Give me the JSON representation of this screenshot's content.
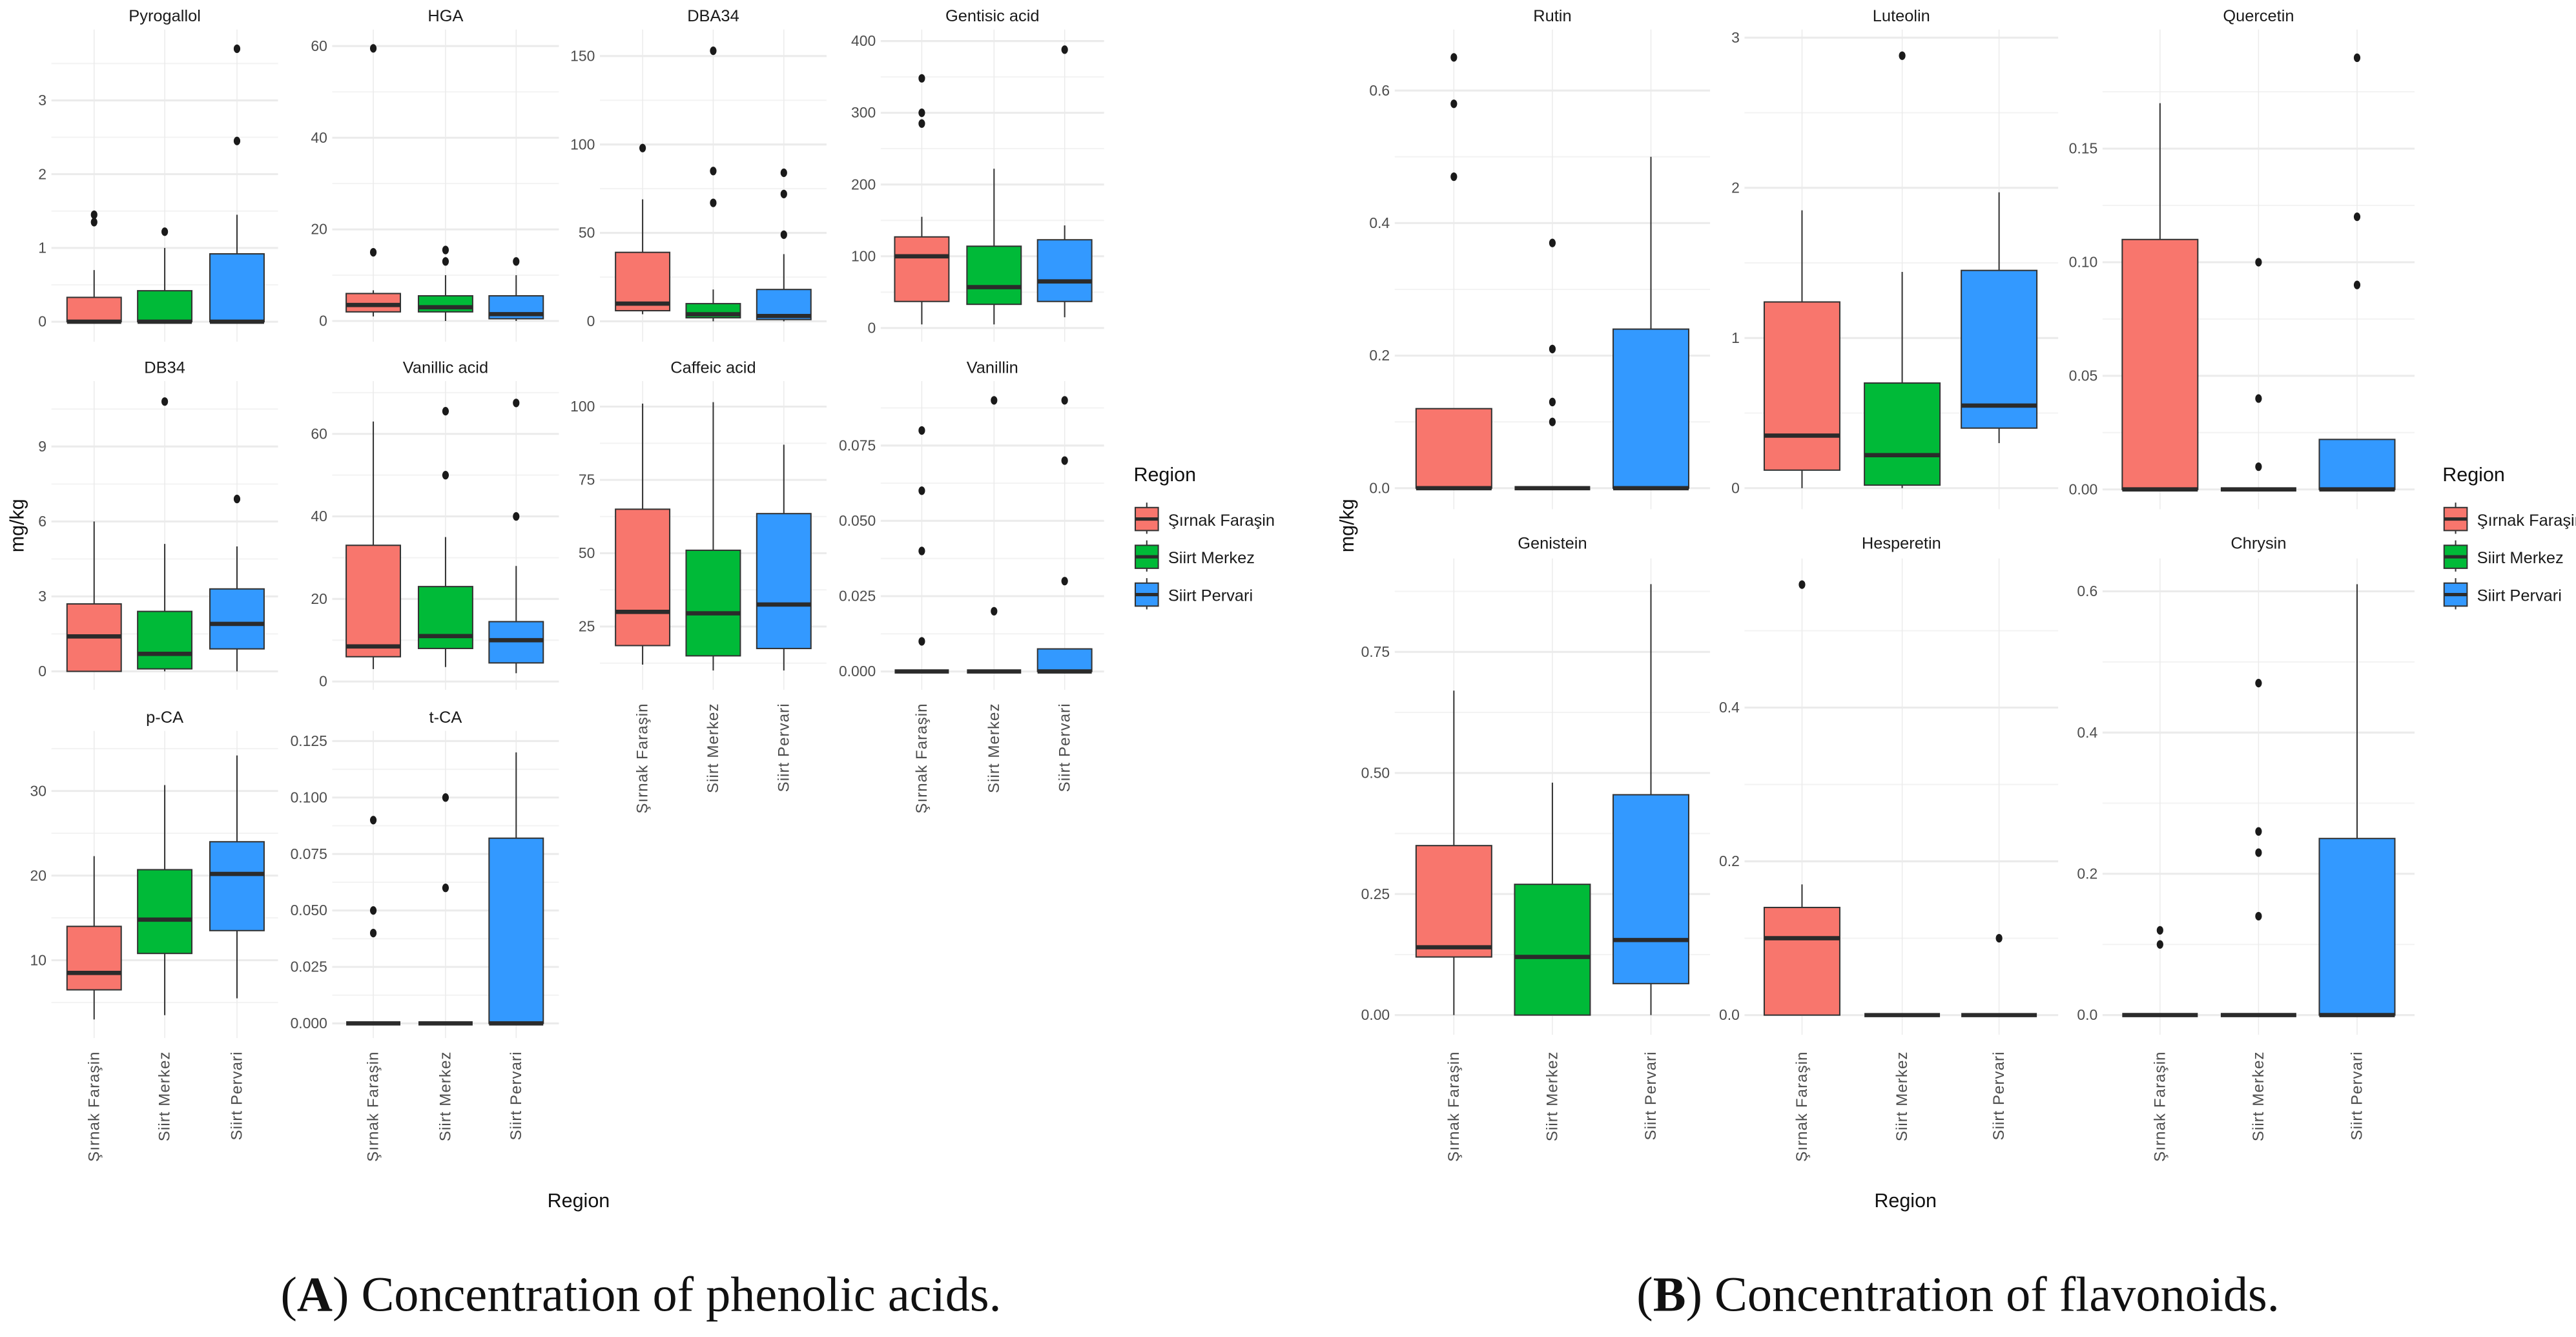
{
  "figure": {
    "caption_a": {
      "open": "(",
      "label": "A",
      "text": ") Concentration of phenolic acids."
    },
    "caption_b": {
      "open": "(",
      "label": "B",
      "text": ") Concentration of flavonoids."
    },
    "ylabel": "mg/kg",
    "xlabel": "Region",
    "legend_title": "Region"
  },
  "regions": [
    "Şırnak Faraşin",
    "Siirt Merkez",
    "Siirt Pervari"
  ],
  "colors": {
    "Şırnak Faraşin": "#F8766D",
    "Siirt Merkez": "#00BA38",
    "Siirt Pervari": "#3399FF",
    "outline": "#333333",
    "grid": "#ebebeb"
  },
  "chart_data": [
    {
      "type": "box",
      "group": "A",
      "title": "Pyrogallol",
      "ylim": [
        -0.27,
        3.96
      ],
      "yticks": [
        0,
        1,
        2,
        3
      ],
      "ytick_labels": [
        "0",
        "1",
        "2",
        "3"
      ],
      "boxes": [
        {
          "low": 0,
          "q1": 0,
          "median": 0,
          "q3": 0.33,
          "high": 0.7,
          "outliers": [
            1.35,
            1.45
          ]
        },
        {
          "low": 0,
          "q1": 0,
          "median": 0,
          "q3": 0.42,
          "high": 1.0,
          "outliers": [
            1.22
          ]
        },
        {
          "low": 0,
          "q1": 0,
          "median": 0,
          "q3": 0.92,
          "high": 1.45,
          "outliers": [
            2.45,
            3.7
          ]
        }
      ]
    },
    {
      "type": "box",
      "group": "A",
      "title": "HGA",
      "ylim": [
        -4.5,
        63.6
      ],
      "yticks": [
        0,
        20,
        40,
        60
      ],
      "ytick_labels": [
        "0",
        "20",
        "40",
        "60"
      ],
      "boxes": [
        {
          "low": 1,
          "q1": 2,
          "median": 3.5,
          "q3": 6,
          "high": 6.7,
          "outliers": [
            15,
            59.5
          ]
        },
        {
          "low": 0,
          "q1": 2,
          "median": 3,
          "q3": 5.5,
          "high": 10,
          "outliers": [
            13,
            15.5
          ]
        },
        {
          "low": 0,
          "q1": 0.5,
          "median": 1.5,
          "q3": 5.5,
          "high": 10,
          "outliers": [
            13
          ]
        }
      ]
    },
    {
      "type": "box",
      "group": "A",
      "title": "DBA34",
      "ylim": [
        -11.5,
        165
      ],
      "yticks": [
        0,
        50,
        100,
        150
      ],
      "ytick_labels": [
        "0",
        "50",
        "100",
        "150"
      ],
      "boxes": [
        {
          "low": 4,
          "q1": 6,
          "median": 10,
          "q3": 39,
          "high": 69,
          "outliers": [
            98
          ]
        },
        {
          "low": 0,
          "q1": 2,
          "median": 4,
          "q3": 10,
          "high": 18,
          "outliers": [
            67,
            85,
            153
          ]
        },
        {
          "low": 0,
          "q1": 1,
          "median": 3,
          "q3": 18,
          "high": 38,
          "outliers": [
            49,
            72,
            84
          ]
        }
      ]
    },
    {
      "type": "box",
      "group": "A",
      "title": "Gentisic acid",
      "ylim": [
        -19,
        416
      ],
      "yticks": [
        0,
        100,
        200,
        300,
        400
      ],
      "ytick_labels": [
        "0",
        "100",
        "200",
        "300",
        "400"
      ],
      "boxes": [
        {
          "low": 5,
          "q1": 37,
          "median": 100,
          "q3": 127,
          "high": 155,
          "outliers": [
            285,
            300,
            348
          ]
        },
        {
          "low": 5,
          "q1": 33,
          "median": 57,
          "q3": 114,
          "high": 222,
          "outliers": []
        },
        {
          "low": 15,
          "q1": 37,
          "median": 65,
          "q3": 123,
          "high": 143,
          "outliers": [
            388
          ]
        }
      ]
    },
    {
      "type": "box",
      "group": "A",
      "title": "DB34",
      "ylim": [
        -0.74,
        11.62
      ],
      "yticks": [
        0,
        3,
        6,
        9
      ],
      "ytick_labels": [
        "0",
        "3",
        "6",
        "9"
      ],
      "boxes": [
        {
          "low": 0,
          "q1": 0,
          "median": 1.4,
          "q3": 2.7,
          "high": 6,
          "outliers": []
        },
        {
          "low": 0,
          "q1": 0.1,
          "median": 0.7,
          "q3": 2.4,
          "high": 5.1,
          "outliers": [
            10.8
          ]
        },
        {
          "low": 0,
          "q1": 0.9,
          "median": 1.9,
          "q3": 3.3,
          "high": 5.0,
          "outliers": [
            6.9
          ]
        }
      ]
    },
    {
      "type": "box",
      "group": "A",
      "title": "Vanillic acid",
      "ylim": [
        -2.03,
        72.8
      ],
      "yticks": [
        0,
        20,
        40,
        60
      ],
      "ytick_labels": [
        "0",
        "20",
        "40",
        "60"
      ],
      "boxes": [
        {
          "low": 3,
          "q1": 6,
          "median": 8.5,
          "q3": 33,
          "high": 63,
          "outliers": []
        },
        {
          "low": 3.5,
          "q1": 8,
          "median": 11,
          "q3": 23,
          "high": 35,
          "outliers": [
            50,
            65.5
          ]
        },
        {
          "low": 2,
          "q1": 4.5,
          "median": 10,
          "q3": 14.5,
          "high": 28,
          "outliers": [
            40,
            67.5
          ]
        }
      ]
    },
    {
      "type": "box",
      "group": "A",
      "title": "Caffeic acid",
      "ylim": [
        3.4,
        108.7
      ],
      "yticks": [
        25,
        50,
        75,
        100
      ],
      "ytick_labels": [
        "25",
        "50",
        "75",
        "100"
      ],
      "boxes": [
        {
          "low": 12,
          "q1": 18.5,
          "median": 30,
          "q3": 65,
          "high": 101,
          "outliers": []
        },
        {
          "low": 10,
          "q1": 15,
          "median": 29.5,
          "q3": 51,
          "high": 101.5,
          "outliers": []
        },
        {
          "low": 10,
          "q1": 17.5,
          "median": 32.5,
          "q3": 63.5,
          "high": 87,
          "outliers": []
        }
      ]
    },
    {
      "type": "box",
      "group": "A",
      "title": "Vanillin",
      "ylim": [
        -0.0061,
        0.0964
      ],
      "yticks": [
        0,
        0.025,
        0.05,
        0.075
      ],
      "ytick_labels": [
        "0.000",
        "0.025",
        "0.050",
        "0.075"
      ],
      "boxes": [
        {
          "low": 0,
          "q1": 0,
          "median": 0,
          "q3": 0,
          "high": 0,
          "outliers": [
            0.01,
            0.04,
            0.06,
            0.08
          ]
        },
        {
          "low": 0,
          "q1": 0,
          "median": 0,
          "q3": 0,
          "high": 0,
          "outliers": [
            0.02,
            0.09
          ]
        },
        {
          "low": 0,
          "q1": 0,
          "median": 0,
          "q3": 0.0075,
          "high": 0.0075,
          "outliers": [
            0.03,
            0.07,
            0.09
          ]
        }
      ]
    },
    {
      "type": "box",
      "group": "A",
      "title": "p-CA",
      "ylim": [
        0.8,
        37.1
      ],
      "yticks": [
        10,
        20,
        30
      ],
      "ytick_labels": [
        "10",
        "20",
        "30"
      ],
      "boxes": [
        {
          "low": 3,
          "q1": 6.5,
          "median": 8.5,
          "q3": 14,
          "high": 22.3,
          "outliers": []
        },
        {
          "low": 3.5,
          "q1": 10.8,
          "median": 14.8,
          "q3": 20.7,
          "high": 30.7,
          "outliers": []
        },
        {
          "low": 5.5,
          "q1": 13.5,
          "median": 20.2,
          "q3": 24,
          "high": 34.2,
          "outliers": []
        }
      ]
    },
    {
      "type": "box",
      "group": "A",
      "title": "t-CA",
      "ylim": [
        -0.0065,
        0.1295
      ],
      "yticks": [
        0,
        0.025,
        0.05,
        0.075,
        0.1,
        0.125
      ],
      "ytick_labels": [
        "0.000",
        "0.025",
        "0.050",
        "0.075",
        "0.100",
        "0.125"
      ],
      "boxes": [
        {
          "low": 0,
          "q1": 0,
          "median": 0,
          "q3": 0,
          "high": 0,
          "outliers": [
            0.04,
            0.05,
            0.09
          ]
        },
        {
          "low": 0,
          "q1": 0,
          "median": 0,
          "q3": 0,
          "high": 0,
          "outliers": [
            0.06,
            0.1
          ]
        },
        {
          "low": 0,
          "q1": 0,
          "median": 0,
          "q3": 0.082,
          "high": 0.12,
          "outliers": []
        }
      ]
    },
    {
      "type": "box",
      "group": "B",
      "title": "Rutin",
      "ylim": [
        -0.0317,
        0.692
      ],
      "yticks": [
        0,
        0.2,
        0.4,
        0.6
      ],
      "ytick_labels": [
        "0.0",
        "0.2",
        "0.4",
        "0.6"
      ],
      "boxes": [
        {
          "low": 0,
          "q1": 0,
          "median": 0,
          "q3": 0.12,
          "high": 0.12,
          "outliers": [
            0.47,
            0.58,
            0.65
          ]
        },
        {
          "low": 0,
          "q1": 0,
          "median": 0,
          "q3": 0,
          "high": 0,
          "outliers": [
            0.1,
            0.13,
            0.21,
            0.37
          ]
        },
        {
          "low": 0,
          "q1": 0,
          "median": 0,
          "q3": 0.24,
          "high": 0.5,
          "outliers": []
        }
      ]
    },
    {
      "type": "box",
      "group": "B",
      "title": "Luteolin",
      "ylim": [
        -0.14,
        3.054
      ],
      "yticks": [
        0,
        1,
        2,
        3
      ],
      "ytick_labels": [
        "0",
        "1",
        "2",
        "3"
      ],
      "boxes": [
        {
          "low": 0,
          "q1": 0.12,
          "median": 0.35,
          "q3": 1.24,
          "high": 1.85,
          "outliers": []
        },
        {
          "low": 0,
          "q1": 0.02,
          "median": 0.22,
          "q3": 0.7,
          "high": 1.44,
          "outliers": [
            2.88
          ]
        },
        {
          "low": 0.3,
          "q1": 0.4,
          "median": 0.55,
          "q3": 1.45,
          "high": 1.97,
          "outliers": []
        }
      ]
    },
    {
      "type": "box",
      "group": "B",
      "title": "Quercetin",
      "ylim": [
        -0.0087,
        0.2024
      ],
      "yticks": [
        0,
        0.05,
        0.1,
        0.15
      ],
      "ytick_labels": [
        "0.00",
        "0.05",
        "0.10",
        "0.15"
      ],
      "boxes": [
        {
          "low": 0,
          "q1": 0,
          "median": 0,
          "q3": 0.11,
          "high": 0.17,
          "outliers": []
        },
        {
          "low": 0,
          "q1": 0,
          "median": 0,
          "q3": 0,
          "high": 0,
          "outliers": [
            0.01,
            0.04,
            0.1
          ]
        },
        {
          "low": 0,
          "q1": 0,
          "median": 0,
          "q3": 0.022,
          "high": 0.022,
          "outliers": [
            0.09,
            0.12,
            0.19
          ]
        }
      ]
    },
    {
      "type": "box",
      "group": "B",
      "title": "Genistein",
      "ylim": [
        -0.0407,
        0.943
      ],
      "yticks": [
        0,
        0.25,
        0.5,
        0.75
      ],
      "ytick_labels": [
        "0.00",
        "0.25",
        "0.50",
        "0.75"
      ],
      "boxes": [
        {
          "low": 0,
          "q1": 0.12,
          "median": 0.14,
          "q3": 0.35,
          "high": 0.67,
          "outliers": []
        },
        {
          "low": 0,
          "q1": 0,
          "median": 0.12,
          "q3": 0.27,
          "high": 0.48,
          "outliers": []
        },
        {
          "low": 0,
          "q1": 0.065,
          "median": 0.155,
          "q3": 0.455,
          "high": 0.89,
          "outliers": []
        }
      ]
    },
    {
      "type": "box",
      "group": "B",
      "title": "Hesperetin",
      "ylim": [
        -0.0256,
        0.594
      ],
      "yticks": [
        0,
        0.2,
        0.4
      ],
      "ytick_labels": [
        "0.0",
        "0.2",
        "0.4"
      ],
      "boxes": [
        {
          "low": 0,
          "q1": 0,
          "median": 0.1,
          "q3": 0.14,
          "high": 0.17,
          "outliers": [
            0.56
          ]
        },
        {
          "low": 0,
          "q1": 0,
          "median": 0,
          "q3": 0,
          "high": 0,
          "outliers": []
        },
        {
          "low": 0,
          "q1": 0,
          "median": 0,
          "q3": 0,
          "high": 0,
          "outliers": [
            0.1
          ]
        }
      ]
    },
    {
      "type": "box",
      "group": "B",
      "title": "Chrysin",
      "ylim": [
        -0.0279,
        0.6465
      ],
      "yticks": [
        0,
        0.2,
        0.4,
        0.6
      ],
      "ytick_labels": [
        "0.0",
        "0.2",
        "0.4",
        "0.6"
      ],
      "boxes": [
        {
          "low": 0,
          "q1": 0,
          "median": 0,
          "q3": 0,
          "high": 0,
          "outliers": [
            0.1,
            0.12
          ]
        },
        {
          "low": 0,
          "q1": 0,
          "median": 0,
          "q3": 0,
          "high": 0,
          "outliers": [
            0.14,
            0.23,
            0.26,
            0.47
          ]
        },
        {
          "low": 0,
          "q1": 0,
          "median": 0,
          "q3": 0.25,
          "high": 0.61,
          "outliers": []
        }
      ]
    }
  ]
}
